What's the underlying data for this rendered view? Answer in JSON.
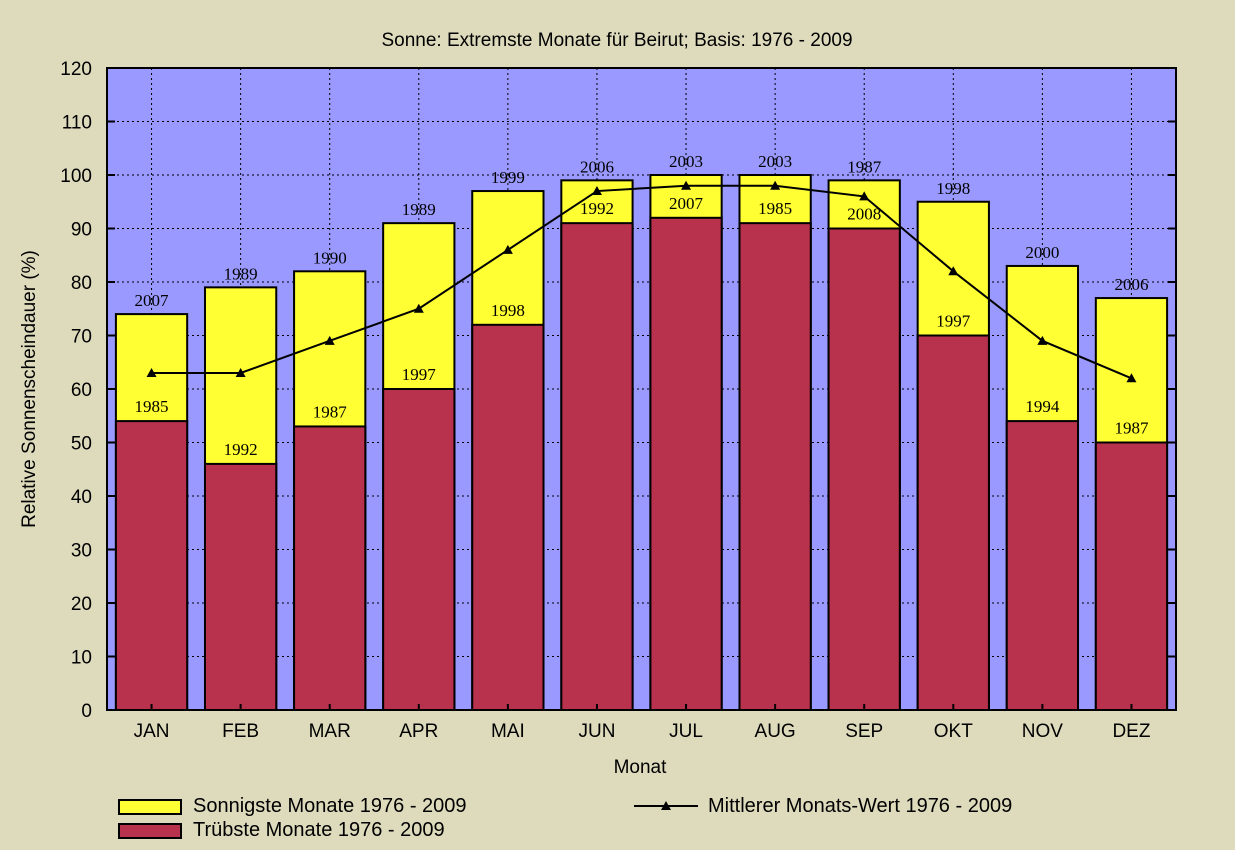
{
  "chart_data": {
    "type": "bar",
    "title": "Sonne: Extremste Monate für Beirut; Basis: 1976 - 2009",
    "xlabel": "Monat",
    "ylabel": "Relative Sonnenscheindauer (%)",
    "ylim": [
      0,
      120
    ],
    "yticks": [
      0,
      10,
      20,
      30,
      40,
      50,
      60,
      70,
      80,
      90,
      100,
      110,
      120
    ],
    "grid": true,
    "categories": [
      "JAN",
      "FEB",
      "MAR",
      "APR",
      "MAI",
      "JUN",
      "JUL",
      "AUG",
      "SEP",
      "OKT",
      "NOV",
      "DEZ"
    ],
    "series": [
      {
        "name": "Sonnigste Monate 1976 - 2009",
        "kind": "bar",
        "color": "#ffff33",
        "values": [
          74,
          79,
          82,
          91,
          97,
          99,
          100,
          100,
          99,
          95,
          83,
          77
        ],
        "year_labels": [
          "2007",
          "1989",
          "1990",
          "1989",
          "1999",
          "2006",
          "2003",
          "2003",
          "1987",
          "1998",
          "2000",
          "2006"
        ]
      },
      {
        "name": "Trübste Monate 1976 - 2009",
        "kind": "bar",
        "color": "#b8314d",
        "values": [
          54,
          46,
          53,
          60,
          72,
          91,
          92,
          91,
          90,
          70,
          54,
          50
        ],
        "year_labels": [
          "1985",
          "1992",
          "1987",
          "1997",
          "1998",
          "1992",
          "2007",
          "1985",
          "2008",
          "1997",
          "1994",
          "1987"
        ]
      },
      {
        "name": "Mittlerer Monats-Wert 1976 - 2009",
        "kind": "line",
        "color": "#000000",
        "values": [
          63,
          63,
          69,
          75,
          86,
          97,
          98,
          98,
          96,
          82,
          69,
          62
        ]
      }
    ],
    "plot_background": "#9999ff"
  }
}
